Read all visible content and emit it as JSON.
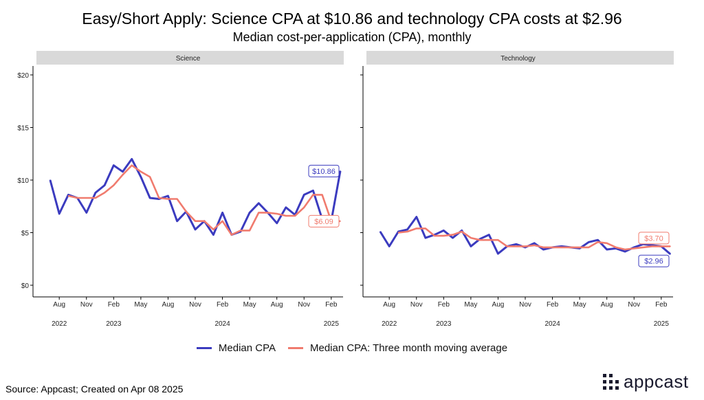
{
  "header": {
    "title": "Easy/Short Apply: Science CPA at $10.86 and technology CPA costs at $2.96",
    "subtitle": "Median cost-per-application (CPA), monthly"
  },
  "footer": {
    "source": "Source: Appcast; Created on Apr 08 2025",
    "logo_text": "appcast"
  },
  "legend": {
    "median_label": "Median CPA",
    "avg_label": "Median CPA: Three month moving average"
  },
  "colors": {
    "median": "#3b3bbf",
    "avg": "#f07b6e",
    "strip_bg": "#d9d9d9"
  },
  "chart_data": {
    "type": "line",
    "ylim": [
      0,
      20
    ],
    "yticks": [
      "$0",
      "$5",
      "$10",
      "$15",
      "$20"
    ],
    "ytick_values": [
      0,
      5,
      10,
      15,
      20
    ],
    "x_tick_months": [
      "Aug",
      "Nov",
      "Feb",
      "May",
      "Aug",
      "Nov",
      "Feb",
      "May",
      "Aug",
      "Nov",
      "Feb"
    ],
    "x_tick_index": [
      1,
      4,
      7,
      10,
      13,
      16,
      19,
      22,
      25,
      28,
      31
    ],
    "x_year_labels": [
      "2022",
      "2023",
      "2024",
      "2025"
    ],
    "x_year_index": [
      1,
      7,
      19,
      31
    ],
    "x_months": [
      "Jul 2022",
      "Aug 2022",
      "Sep 2022",
      "Oct 2022",
      "Nov 2022",
      "Dec 2022",
      "Jan 2023",
      "Feb 2023",
      "Mar 2023",
      "Apr 2023",
      "May 2023",
      "Jun 2023",
      "Jul 2023",
      "Aug 2023",
      "Sep 2023",
      "Oct 2023",
      "Nov 2023",
      "Dec 2023",
      "Jan 2024",
      "Feb 2024",
      "Mar 2024",
      "Apr 2024",
      "May 2024",
      "Jun 2024",
      "Jul 2024",
      "Aug 2024",
      "Sep 2024",
      "Oct 2024",
      "Nov 2024",
      "Dec 2024",
      "Jan 2025",
      "Feb 2025",
      "Mar 2025"
    ],
    "panels": [
      {
        "name": "Science",
        "series": [
          {
            "name": "Median CPA",
            "values": [
              10.0,
              6.8,
              8.6,
              8.3,
              6.9,
              8.8,
              9.5,
              11.4,
              10.8,
              12.0,
              10.3,
              8.3,
              8.2,
              8.5,
              6.1,
              7.0,
              5.3,
              6.1,
              4.8,
              6.9,
              4.8,
              5.1,
              6.9,
              7.8,
              6.9,
              5.9,
              7.4,
              6.7,
              8.6,
              9.0,
              6.3,
              6.1,
              10.86
            ]
          },
          {
            "name": "Median CPA: Three month moving average",
            "values": [
              null,
              null,
              8.5,
              8.3,
              8.3,
              8.3,
              8.8,
              9.5,
              10.5,
              11.4,
              10.8,
              10.3,
              8.3,
              8.2,
              8.2,
              7.0,
              6.1,
              6.1,
              5.3,
              6.1,
              4.8,
              5.2,
              5.2,
              6.9,
              6.9,
              6.8,
              6.6,
              6.6,
              7.4,
              8.6,
              8.6,
              6.09,
              6.09
            ]
          }
        ],
        "labels": {
          "median": "$10.86",
          "avg": "$6.09"
        }
      },
      {
        "name": "Technology",
        "series": [
          {
            "name": "Median CPA",
            "values": [
              5.1,
              3.7,
              5.1,
              5.3,
              6.5,
              4.5,
              4.8,
              5.2,
              4.5,
              5.2,
              3.7,
              4.4,
              4.8,
              3.0,
              3.7,
              3.9,
              3.6,
              4.0,
              3.4,
              3.6,
              3.7,
              3.6,
              3.5,
              4.1,
              4.3,
              3.4,
              3.5,
              3.2,
              3.6,
              3.9,
              3.8,
              3.7,
              2.96
            ]
          },
          {
            "name": "Median CPA: Three month moving average",
            "values": [
              null,
              null,
              5.0,
              5.1,
              5.4,
              5.4,
              4.7,
              4.7,
              4.8,
              5.1,
              4.5,
              4.3,
              4.3,
              4.3,
              3.7,
              3.7,
              3.7,
              3.8,
              3.6,
              3.6,
              3.6,
              3.6,
              3.6,
              3.6,
              4.1,
              4.0,
              3.6,
              3.4,
              3.5,
              3.6,
              3.7,
              3.7,
              3.7
            ]
          }
        ],
        "labels": {
          "median": "$2.96",
          "avg": "$3.70"
        }
      }
    ]
  }
}
